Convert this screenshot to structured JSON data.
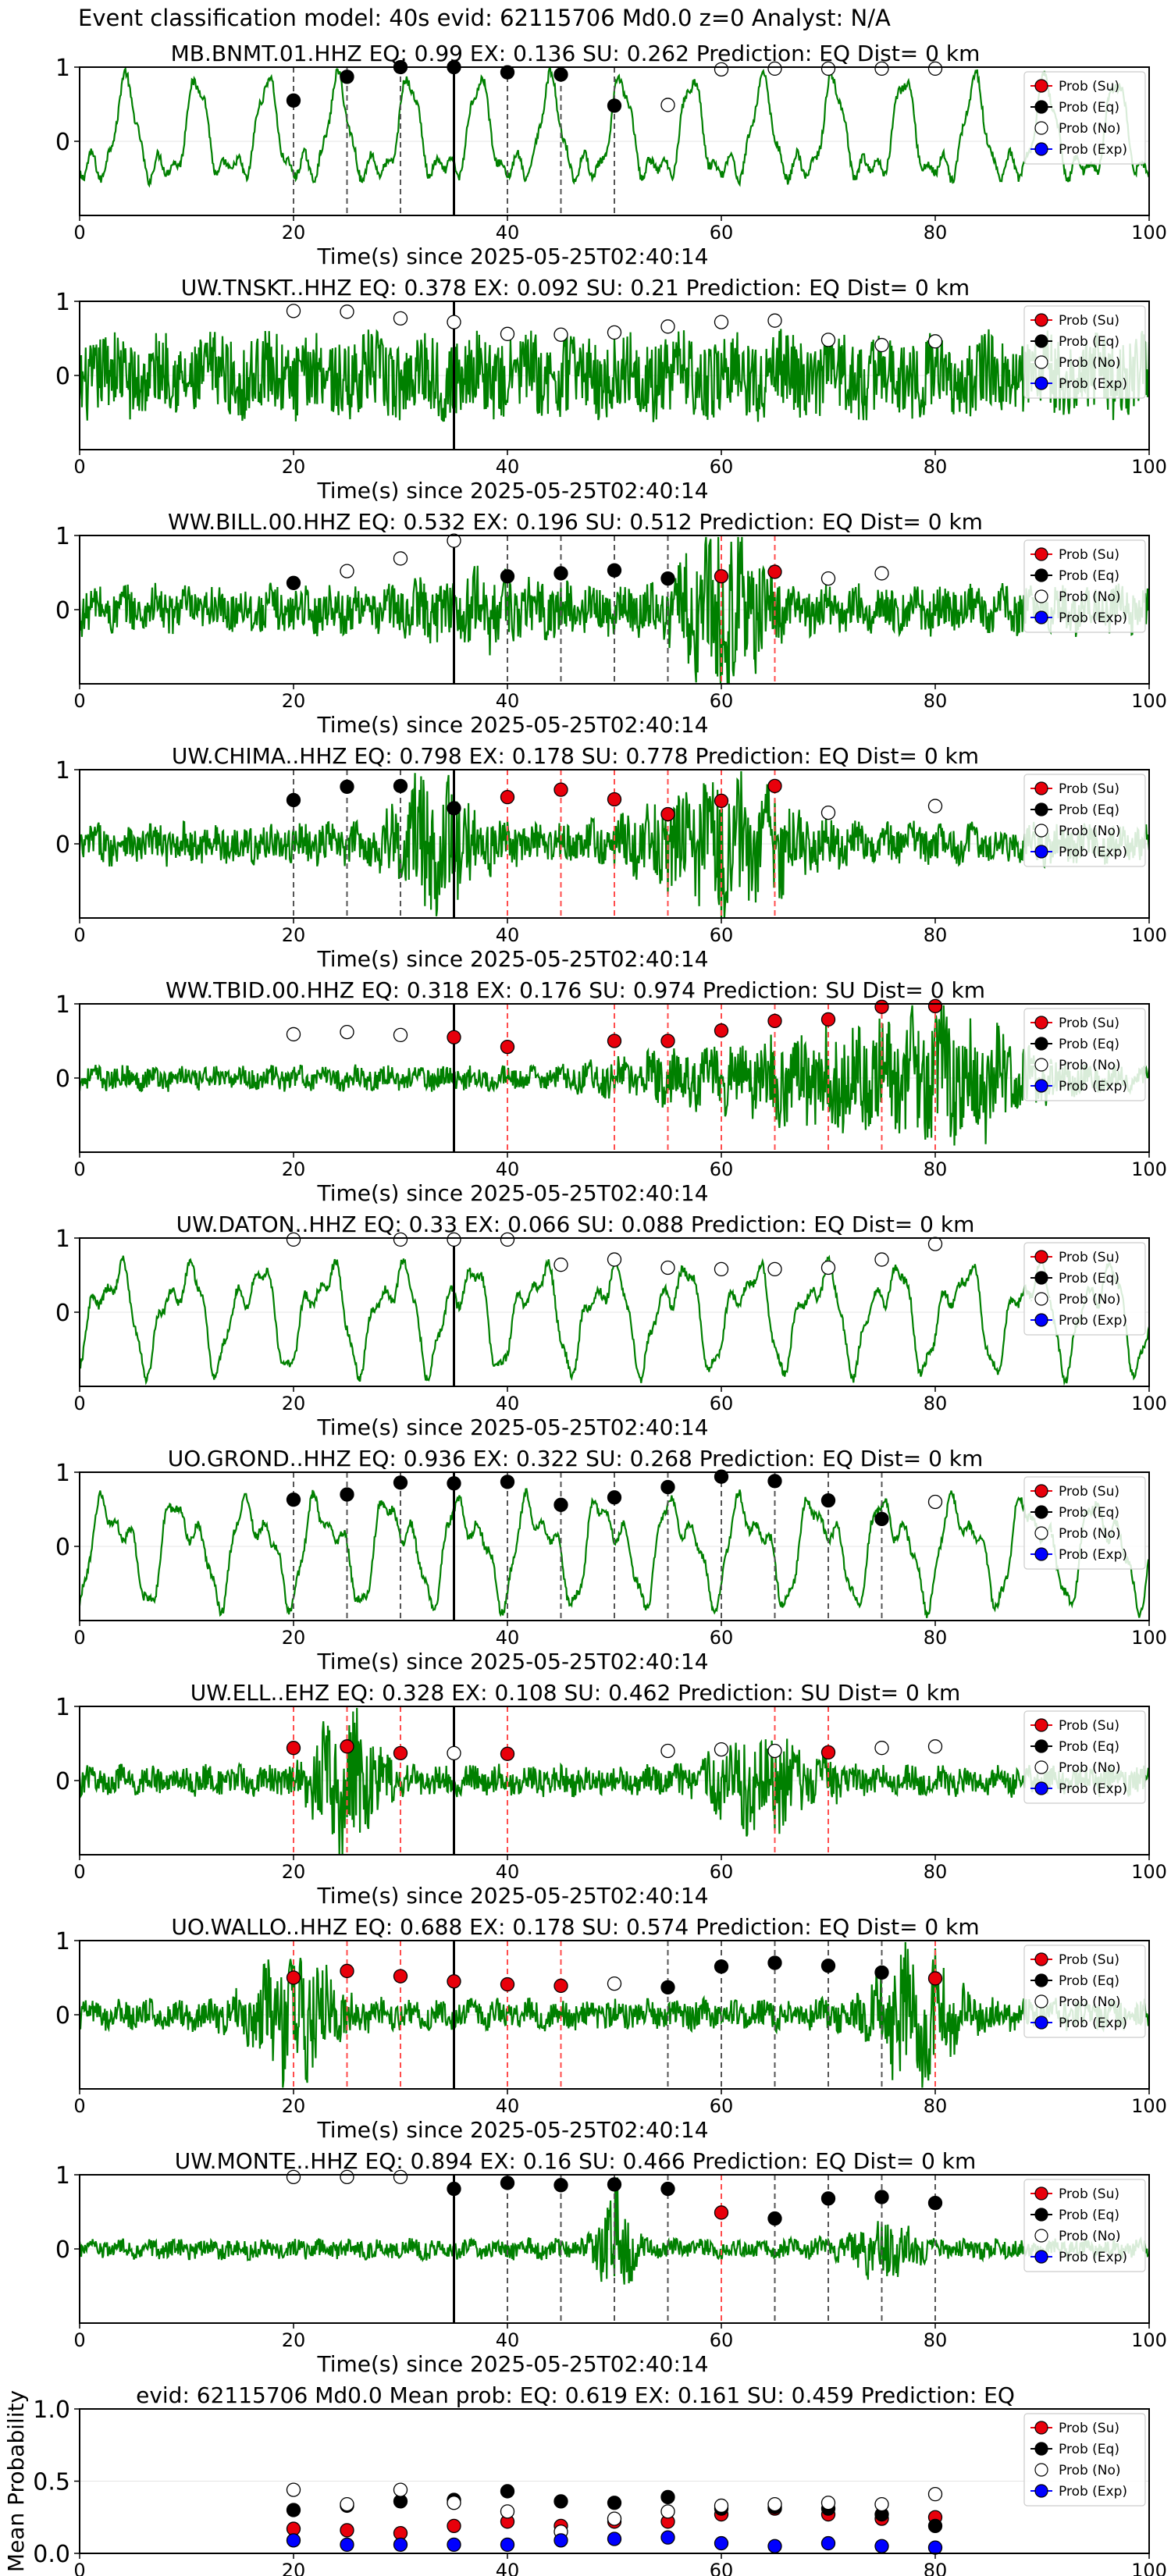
{
  "figure_title": "Event classification model: 40s evid: 62115706 Md0.0 z=0 Analyst: N/A",
  "xlabel": "Time(s) since 2025-05-25T02:40:14",
  "legend": [
    "Prob (Su)",
    "Prob (Eq)",
    "Prob (No)",
    "Prob (Exp)"
  ],
  "colors": {
    "su": "#e8000b",
    "eq": "#000000",
    "no": "#ffffff",
    "exp": "#0000ff",
    "trace": "#008000",
    "line_su": "#ff4d4d",
    "line_eq": "#555555"
  },
  "chart_data": [
    {
      "type": "line",
      "title": "MB.BNMT.01.HHZ   EQ: 0.99   EX: 0.136   SU: 0.262   Prediction: EQ    Dist= 0 km",
      "xlim": [
        0,
        100
      ],
      "x_ticks": [
        0,
        20,
        40,
        60,
        80,
        100
      ],
      "y_ticks": [
        0,
        1
      ],
      "onset": 35,
      "trace_style": "lowfreq",
      "points": [
        [
          20,
          0.55,
          "eq"
        ],
        [
          25,
          0.87,
          "eq"
        ],
        [
          30,
          1.0,
          "eq"
        ],
        [
          35,
          1.0,
          "eq"
        ],
        [
          40,
          0.93,
          "eq"
        ],
        [
          45,
          0.9,
          "eq"
        ],
        [
          50,
          0.48,
          "eq"
        ],
        [
          55,
          0.49,
          "no"
        ],
        [
          60,
          0.97,
          "no"
        ],
        [
          65,
          0.98,
          "no"
        ],
        [
          70,
          0.98,
          "no"
        ],
        [
          75,
          0.98,
          "no"
        ],
        [
          80,
          0.98,
          "no"
        ]
      ],
      "vlines": [
        [
          20,
          "eq"
        ],
        [
          25,
          "eq"
        ],
        [
          30,
          "eq"
        ],
        [
          40,
          "eq"
        ],
        [
          45,
          "eq"
        ],
        [
          50,
          "eq"
        ]
      ]
    },
    {
      "type": "line",
      "title": "UW.TNSKT..HHZ   EQ: 0.378   EX: 0.092   SU: 0.21   Prediction: EQ    Dist= 0 km",
      "xlim": [
        0,
        100
      ],
      "x_ticks": [
        0,
        20,
        40,
        60,
        80,
        100
      ],
      "y_ticks": [
        0,
        1
      ],
      "onset": 35,
      "trace_style": "noisy",
      "points": [
        [
          20,
          0.87,
          "no"
        ],
        [
          25,
          0.86,
          "no"
        ],
        [
          30,
          0.77,
          "no"
        ],
        [
          35,
          0.72,
          "no"
        ],
        [
          40,
          0.56,
          "no"
        ],
        [
          45,
          0.55,
          "no"
        ],
        [
          50,
          0.58,
          "no"
        ],
        [
          55,
          0.66,
          "no"
        ],
        [
          60,
          0.72,
          "no"
        ],
        [
          65,
          0.74,
          "no"
        ],
        [
          70,
          0.48,
          "no"
        ],
        [
          75,
          0.41,
          "no"
        ],
        [
          80,
          0.46,
          "no"
        ]
      ],
      "vlines": []
    },
    {
      "type": "line",
      "title": "WW.BILL.00.HHZ   EQ: 0.532   EX: 0.196   SU: 0.512   Prediction: EQ    Dist= 0 km",
      "xlim": [
        0,
        100
      ],
      "x_ticks": [
        0,
        20,
        40,
        60,
        80,
        100
      ],
      "y_ticks": [
        0,
        1
      ],
      "onset": 35,
      "trace_style": "burst60",
      "points": [
        [
          20,
          0.36,
          "eq"
        ],
        [
          25,
          0.52,
          "no"
        ],
        [
          30,
          0.69,
          "no"
        ],
        [
          35,
          0.93,
          "no"
        ],
        [
          40,
          0.45,
          "eq"
        ],
        [
          45,
          0.49,
          "eq"
        ],
        [
          50,
          0.53,
          "eq"
        ],
        [
          55,
          0.42,
          "eq"
        ],
        [
          60,
          0.45,
          "su"
        ],
        [
          65,
          0.51,
          "su"
        ],
        [
          70,
          0.42,
          "no"
        ],
        [
          75,
          0.49,
          "no"
        ]
      ],
      "vlines": [
        [
          40,
          "eq"
        ],
        [
          45,
          "eq"
        ],
        [
          50,
          "eq"
        ],
        [
          55,
          "eq"
        ],
        [
          60,
          "su"
        ],
        [
          65,
          "su"
        ]
      ]
    },
    {
      "type": "line",
      "title": "UW.CHIMA..HHZ   EQ: 0.798   EX: 0.178   SU: 0.778   Prediction: EQ    Dist= 0 km",
      "xlim": [
        0,
        100
      ],
      "x_ticks": [
        0,
        20,
        40,
        60,
        80,
        100
      ],
      "y_ticks": [
        0,
        1
      ],
      "onset": 35,
      "trace_style": "burst30_60",
      "points": [
        [
          20,
          0.59,
          "eq"
        ],
        [
          25,
          0.77,
          "eq"
        ],
        [
          30,
          0.78,
          "eq"
        ],
        [
          35,
          0.48,
          "eq"
        ],
        [
          40,
          0.63,
          "su"
        ],
        [
          45,
          0.73,
          "su"
        ],
        [
          50,
          0.6,
          "su"
        ],
        [
          55,
          0.4,
          "su"
        ],
        [
          60,
          0.58,
          "su"
        ],
        [
          65,
          0.78,
          "su"
        ],
        [
          70,
          0.42,
          "no"
        ],
        [
          80,
          0.51,
          "no"
        ]
      ],
      "vlines": [
        [
          20,
          "eq"
        ],
        [
          25,
          "eq"
        ],
        [
          30,
          "eq"
        ],
        [
          40,
          "su"
        ],
        [
          45,
          "su"
        ],
        [
          50,
          "su"
        ],
        [
          55,
          "su"
        ],
        [
          60,
          "su"
        ],
        [
          65,
          "su"
        ]
      ]
    },
    {
      "type": "line",
      "title": "WW.TBID.00.HHZ   EQ: 0.318   EX: 0.176   SU: 0.974   Prediction: SU    Dist= 0 km",
      "xlim": [
        0,
        100
      ],
      "x_ticks": [
        0,
        20,
        40,
        60,
        80,
        100
      ],
      "y_ticks": [
        0,
        1
      ],
      "onset": 35,
      "trace_style": "growing",
      "points": [
        [
          20,
          0.59,
          "no"
        ],
        [
          25,
          0.62,
          "no"
        ],
        [
          30,
          0.58,
          "no"
        ],
        [
          35,
          0.55,
          "su"
        ],
        [
          40,
          0.42,
          "su"
        ],
        [
          50,
          0.5,
          "su"
        ],
        [
          55,
          0.5,
          "su"
        ],
        [
          60,
          0.64,
          "su"
        ],
        [
          65,
          0.77,
          "su"
        ],
        [
          70,
          0.79,
          "su"
        ],
        [
          75,
          0.96,
          "su"
        ],
        [
          80,
          0.97,
          "su"
        ]
      ],
      "vlines": [
        [
          40,
          "su"
        ],
        [
          50,
          "su"
        ],
        [
          55,
          "su"
        ],
        [
          60,
          "su"
        ],
        [
          65,
          "su"
        ],
        [
          70,
          "su"
        ],
        [
          75,
          "su"
        ],
        [
          80,
          "su"
        ]
      ]
    },
    {
      "type": "line",
      "title": "UW.DATON..HHZ   EQ: 0.33   EX: 0.066   SU: 0.088   Prediction: EQ    Dist= 0 km",
      "xlim": [
        0,
        100
      ],
      "x_ticks": [
        0,
        20,
        40,
        60,
        80,
        100
      ],
      "y_ticks": [
        0,
        1
      ],
      "onset": 35,
      "trace_style": "lowfreq",
      "points": [
        [
          20,
          0.98,
          "no"
        ],
        [
          30,
          0.98,
          "no"
        ],
        [
          35,
          0.98,
          "no"
        ],
        [
          40,
          0.98,
          "no"
        ],
        [
          45,
          0.64,
          "no"
        ],
        [
          50,
          0.71,
          "no"
        ],
        [
          55,
          0.6,
          "no"
        ],
        [
          60,
          0.58,
          "no"
        ],
        [
          65,
          0.58,
          "no"
        ],
        [
          70,
          0.6,
          "no"
        ],
        [
          75,
          0.71,
          "no"
        ],
        [
          80,
          0.92,
          "no"
        ]
      ],
      "vlines": []
    },
    {
      "type": "line",
      "title": "UO.GROND..HHZ   EQ: 0.936   EX: 0.322   SU: 0.268   Prediction: EQ    Dist= 0 km",
      "xlim": [
        0,
        100
      ],
      "x_ticks": [
        0,
        20,
        40,
        60,
        80,
        100
      ],
      "y_ticks": [
        0,
        1
      ],
      "onset": 35,
      "trace_style": "lowfreq",
      "points": [
        [
          20,
          0.63,
          "eq"
        ],
        [
          25,
          0.7,
          "eq"
        ],
        [
          30,
          0.86,
          "eq"
        ],
        [
          35,
          0.85,
          "eq"
        ],
        [
          40,
          0.87,
          "eq"
        ],
        [
          45,
          0.56,
          "eq"
        ],
        [
          50,
          0.66,
          "eq"
        ],
        [
          55,
          0.8,
          "eq"
        ],
        [
          60,
          0.94,
          "eq"
        ],
        [
          65,
          0.88,
          "eq"
        ],
        [
          70,
          0.62,
          "eq"
        ],
        [
          75,
          0.37,
          "eq"
        ],
        [
          80,
          0.6,
          "no"
        ]
      ],
      "vlines": [
        [
          20,
          "eq"
        ],
        [
          25,
          "eq"
        ],
        [
          30,
          "eq"
        ],
        [
          40,
          "eq"
        ],
        [
          45,
          "eq"
        ],
        [
          50,
          "eq"
        ],
        [
          55,
          "eq"
        ],
        [
          60,
          "eq"
        ],
        [
          65,
          "eq"
        ],
        [
          70,
          "eq"
        ],
        [
          75,
          "eq"
        ]
      ]
    },
    {
      "type": "line",
      "title": "UW.ELL..EHZ   EQ: 0.328   EX: 0.108   SU: 0.462   Prediction: SU    Dist= 0 km",
      "xlim": [
        0,
        100
      ],
      "x_ticks": [
        0,
        20,
        40,
        60,
        80,
        100
      ],
      "y_ticks": [
        0,
        1
      ],
      "onset": 35,
      "trace_style": "burst25_65",
      "points": [
        [
          20,
          0.44,
          "su"
        ],
        [
          25,
          0.46,
          "su"
        ],
        [
          30,
          0.37,
          "su"
        ],
        [
          35,
          0.37,
          "no"
        ],
        [
          40,
          0.36,
          "su"
        ],
        [
          55,
          0.4,
          "no"
        ],
        [
          60,
          0.42,
          "no"
        ],
        [
          65,
          0.4,
          "no"
        ],
        [
          70,
          0.38,
          "su"
        ],
        [
          75,
          0.44,
          "no"
        ],
        [
          80,
          0.46,
          "no"
        ]
      ],
      "vlines": [
        [
          20,
          "su"
        ],
        [
          25,
          "su"
        ],
        [
          30,
          "su"
        ],
        [
          40,
          "su"
        ],
        [
          65,
          "su"
        ],
        [
          70,
          "su"
        ]
      ]
    },
    {
      "type": "line",
      "title": "UO.WALLO..HHZ   EQ: 0.688   EX: 0.178   SU: 0.574   Prediction: EQ    Dist= 0 km",
      "xlim": [
        0,
        100
      ],
      "x_ticks": [
        0,
        20,
        40,
        60,
        80,
        100
      ],
      "y_ticks": [
        0,
        1
      ],
      "onset": 35,
      "trace_style": "burst20_80",
      "points": [
        [
          20,
          0.5,
          "su"
        ],
        [
          25,
          0.59,
          "su"
        ],
        [
          30,
          0.52,
          "su"
        ],
        [
          35,
          0.45,
          "su"
        ],
        [
          40,
          0.41,
          "su"
        ],
        [
          45,
          0.39,
          "su"
        ],
        [
          50,
          0.42,
          "no"
        ],
        [
          55,
          0.37,
          "eq"
        ],
        [
          60,
          0.65,
          "eq"
        ],
        [
          65,
          0.7,
          "eq"
        ],
        [
          70,
          0.66,
          "eq"
        ],
        [
          75,
          0.57,
          "eq"
        ],
        [
          80,
          0.49,
          "su"
        ]
      ],
      "vlines": [
        [
          20,
          "su"
        ],
        [
          25,
          "su"
        ],
        [
          30,
          "su"
        ],
        [
          40,
          "su"
        ],
        [
          45,
          "su"
        ],
        [
          55,
          "eq"
        ],
        [
          60,
          "eq"
        ],
        [
          65,
          "eq"
        ],
        [
          70,
          "eq"
        ],
        [
          75,
          "eq"
        ],
        [
          80,
          "su"
        ]
      ]
    },
    {
      "type": "line",
      "title": "UW.MONTE..HHZ   EQ: 0.894   EX: 0.16   SU: 0.466   Prediction: EQ    Dist= 0 km",
      "xlim": [
        0,
        100
      ],
      "x_ticks": [
        0,
        20,
        40,
        60,
        80,
        100
      ],
      "y_ticks": [
        0,
        1
      ],
      "onset": 35,
      "trace_style": "quiet_burst50",
      "points": [
        [
          20,
          0.97,
          "no"
        ],
        [
          25,
          0.97,
          "no"
        ],
        [
          30,
          0.97,
          "no"
        ],
        [
          35,
          0.81,
          "eq"
        ],
        [
          40,
          0.89,
          "eq"
        ],
        [
          45,
          0.86,
          "eq"
        ],
        [
          50,
          0.87,
          "eq"
        ],
        [
          55,
          0.81,
          "eq"
        ],
        [
          60,
          0.49,
          "su"
        ],
        [
          65,
          0.41,
          "eq"
        ],
        [
          70,
          0.68,
          "eq"
        ],
        [
          75,
          0.7,
          "eq"
        ],
        [
          80,
          0.62,
          "eq"
        ]
      ],
      "vlines": [
        [
          40,
          "eq"
        ],
        [
          45,
          "eq"
        ],
        [
          50,
          "eq"
        ],
        [
          55,
          "eq"
        ],
        [
          60,
          "su"
        ],
        [
          65,
          "eq"
        ],
        [
          70,
          "eq"
        ],
        [
          75,
          "eq"
        ],
        [
          80,
          "eq"
        ]
      ]
    },
    {
      "type": "scatter",
      "title": "evid: 62115706  Md0.0   Mean prob:   EQ: 0.619  EX: 0.161  SU: 0.459   Prediction: EQ",
      "ylabel": "Mean Probability",
      "xlim": [
        0,
        100
      ],
      "ylim": [
        0,
        1
      ],
      "x_ticks": [
        0,
        20,
        40,
        60,
        80,
        100
      ],
      "y_ticks": [
        0.0,
        0.5,
        1.0
      ],
      "x": [
        20,
        25,
        30,
        35,
        40,
        45,
        50,
        55,
        60,
        65,
        70,
        75,
        80
      ],
      "series": [
        {
          "name": "Prob (Su)",
          "key": "su",
          "values": [
            0.17,
            0.16,
            0.14,
            0.19,
            0.22,
            0.19,
            0.22,
            0.22,
            0.27,
            0.31,
            0.27,
            0.24,
            0.25
          ]
        },
        {
          "name": "Prob (Eq)",
          "key": "eq",
          "values": [
            0.3,
            0.33,
            0.36,
            0.37,
            0.43,
            0.36,
            0.35,
            0.39,
            0.31,
            0.32,
            0.31,
            0.27,
            0.19
          ]
        },
        {
          "name": "Prob (No)",
          "key": "no",
          "values": [
            0.44,
            0.34,
            0.44,
            0.35,
            0.29,
            0.15,
            0.24,
            0.29,
            0.33,
            0.34,
            0.35,
            0.34,
            0.41
          ]
        },
        {
          "name": "Prob (Exp)",
          "key": "exp",
          "values": [
            0.09,
            0.06,
            0.06,
            0.06,
            0.06,
            0.09,
            0.1,
            0.11,
            0.07,
            0.05,
            0.07,
            0.05,
            0.04
          ]
        }
      ]
    }
  ]
}
